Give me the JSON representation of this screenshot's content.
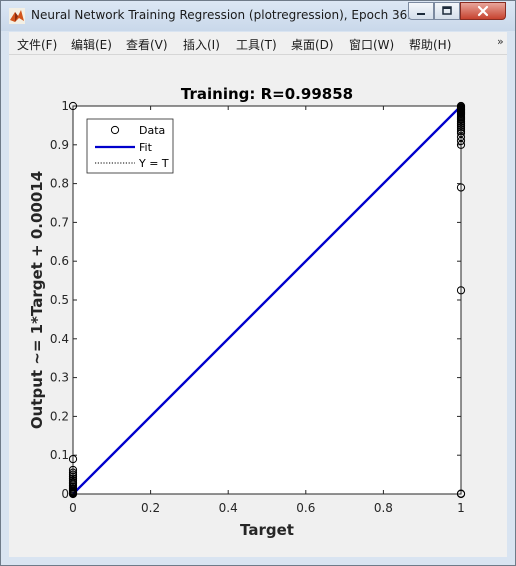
{
  "window": {
    "title": "Neural Network Training Regression (plotregression), Epoch 36...",
    "title_bar_color": "#cfdceb",
    "close_button_color": "#c7432f"
  },
  "menu": {
    "items": [
      {
        "label": "文件(F)"
      },
      {
        "label": "编辑(E)"
      },
      {
        "label": "查看(V)"
      },
      {
        "label": "插入(I)"
      },
      {
        "label": "工具(T)"
      },
      {
        "label": "桌面(D)"
      },
      {
        "label": "窗口(W)"
      },
      {
        "label": "帮助(H)"
      }
    ],
    "overflow_icon": "chevron-right-icon"
  },
  "chart_data": {
    "type": "scatter",
    "title": "Training: R=0.99858",
    "xlabel": "Target",
    "ylabel": "Output ~= 1*Target + 0.00014",
    "xlim": [
      0,
      1
    ],
    "ylim": [
      0,
      1
    ],
    "xticks": [
      0,
      0.2,
      0.4,
      0.6,
      0.8,
      1
    ],
    "yticks": [
      0,
      0.1,
      0.2,
      0.3,
      0.4,
      0.5,
      0.6,
      0.7,
      0.8,
      0.9,
      1
    ],
    "grid": false,
    "legend": {
      "position": "top-left",
      "entries": [
        {
          "label": "Data",
          "marker": "circle",
          "color": "#000000"
        },
        {
          "label": "Fit",
          "line": "solid",
          "color": "#0000cc"
        },
        {
          "label": "Y = T",
          "line": "dotted",
          "color": "#000000"
        }
      ]
    },
    "fit": {
      "slope": 1,
      "intercept": 0.00014,
      "color": "#0000cc"
    },
    "data": {
      "points": [
        [
          0,
          1
        ],
        [
          0,
          0.09
        ],
        [
          0,
          0.062
        ],
        [
          0,
          0.055
        ],
        [
          0,
          0.05
        ],
        [
          0,
          0.045
        ],
        [
          0,
          0.04
        ],
        [
          0,
          0.035
        ],
        [
          0,
          0.03
        ],
        [
          0,
          0.026
        ],
        [
          0,
          0.022
        ],
        [
          0,
          0.018
        ],
        [
          0,
          0.014
        ],
        [
          0,
          0.011
        ],
        [
          0,
          0.008
        ],
        [
          0,
          0.006
        ],
        [
          0,
          0.004
        ],
        [
          0,
          0.003
        ],
        [
          0,
          0.002
        ],
        [
          0,
          0.001
        ],
        [
          0,
          0
        ],
        [
          1,
          1
        ],
        [
          1,
          0.998
        ],
        [
          1,
          0.996
        ],
        [
          1,
          0.994
        ],
        [
          1,
          0.992
        ],
        [
          1,
          0.99
        ],
        [
          1,
          0.988
        ],
        [
          1,
          0.986
        ],
        [
          1,
          0.984
        ],
        [
          1,
          0.982
        ],
        [
          1,
          0.98
        ],
        [
          1,
          0.977
        ],
        [
          1,
          0.974
        ],
        [
          1,
          0.971
        ],
        [
          1,
          0.968
        ],
        [
          1,
          0.965
        ],
        [
          1,
          0.96
        ],
        [
          1,
          0.955
        ],
        [
          1,
          0.95
        ],
        [
          1,
          0.945
        ],
        [
          1,
          0.94
        ],
        [
          1,
          0.935
        ],
        [
          1,
          0.93
        ],
        [
          1,
          0.92
        ],
        [
          1,
          0.91
        ],
        [
          1,
          0.9
        ],
        [
          1,
          0.79
        ],
        [
          1,
          0.525
        ],
        [
          1,
          0.001
        ],
        [
          1,
          0
        ]
      ]
    }
  }
}
